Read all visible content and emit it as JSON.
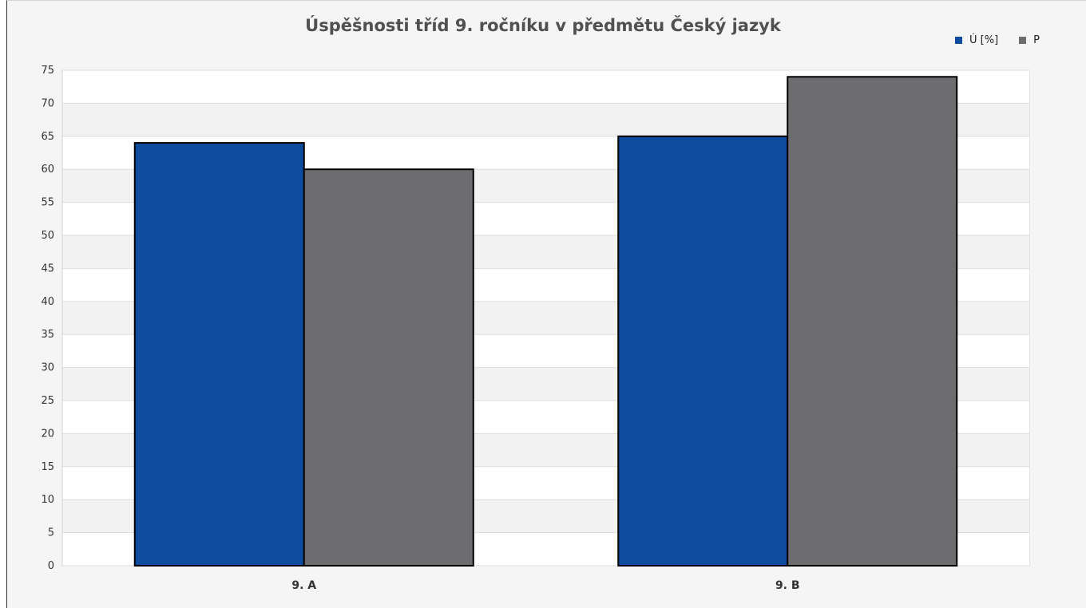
{
  "chart_data": {
    "type": "bar",
    "title": "Úspěšnosti tříd 9. ročníku v předmětu Český jazyk",
    "xlabel": "",
    "ylabel": "",
    "categories": [
      "9. A",
      "9. B"
    ],
    "series": [
      {
        "name": "Ú [%]",
        "color": "#0d4c9e",
        "values": [
          64,
          65
        ]
      },
      {
        "name": "P",
        "color": "#6d6d70",
        "values": [
          60,
          74
        ]
      }
    ],
    "ylim": [
      0,
      75
    ],
    "yticks": [
      0,
      5,
      10,
      15,
      20,
      25,
      30,
      35,
      40,
      45,
      50,
      55,
      60,
      65,
      70,
      75
    ],
    "grid": true,
    "legend_position": "top-right"
  }
}
